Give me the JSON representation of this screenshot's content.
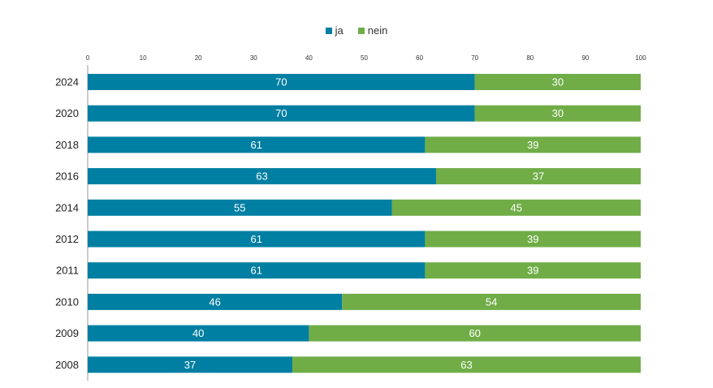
{
  "chart_data": {
    "type": "bar",
    "orientation": "horizontal",
    "stacked": true,
    "categories": [
      "2024",
      "2020",
      "2018",
      "2016",
      "2014",
      "2012",
      "2011",
      "2010",
      "2009",
      "2008"
    ],
    "series": [
      {
        "name": "ja",
        "color": "#007fa3",
        "values": [
          70,
          70,
          61,
          63,
          55,
          61,
          61,
          46,
          40,
          37
        ]
      },
      {
        "name": "nein",
        "color": "#70ad47",
        "values": [
          30,
          30,
          39,
          37,
          45,
          39,
          39,
          54,
          60,
          63
        ]
      }
    ],
    "xlim": [
      0,
      100
    ],
    "xticks": [
      0,
      10,
      20,
      30,
      40,
      50,
      60,
      70,
      80,
      90,
      100
    ],
    "grid": false,
    "legend_position": "top-center"
  }
}
